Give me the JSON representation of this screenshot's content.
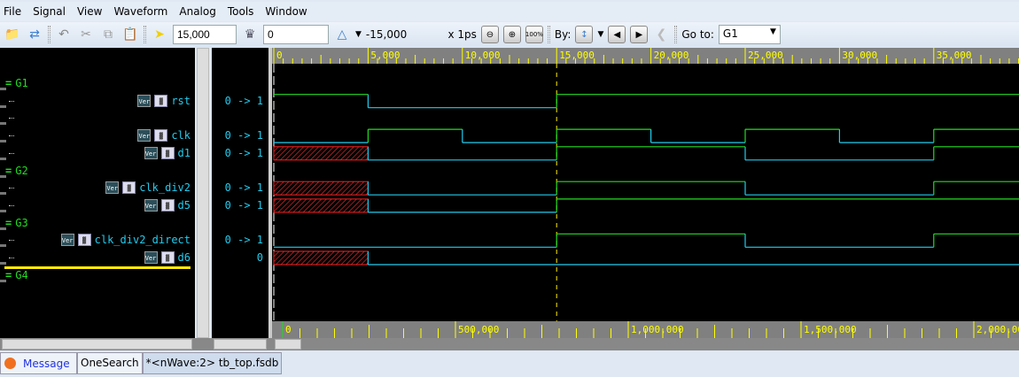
{
  "menu": [
    "File",
    "Signal",
    "View",
    "Waveform",
    "Analog",
    "Tools",
    "Window"
  ],
  "toolbar": {
    "cursor_time": "15,000",
    "marker_time": "0",
    "delta": "-15,000",
    "unit": "x 1ps",
    "by_label": "By:",
    "goto_label": "Go to:",
    "goto_value": "G1",
    "zoom_100": "100%"
  },
  "rows": [
    {
      "type": "group",
      "name": "G1"
    },
    {
      "type": "signal",
      "name": "rst",
      "value": "0 -> 1",
      "wave": [
        [
          0,
          1
        ],
        [
          5000,
          0
        ],
        [
          15000,
          1
        ]
      ]
    },
    {
      "type": "blank"
    },
    {
      "type": "signal",
      "name": "clk",
      "value": "0 -> 1",
      "wave": [
        [
          0,
          0
        ],
        [
          5000,
          1
        ],
        [
          10000,
          0
        ],
        [
          15000,
          1
        ],
        [
          20000,
          0
        ],
        [
          25000,
          1
        ],
        [
          30000,
          0
        ],
        [
          35000,
          1
        ]
      ]
    },
    {
      "type": "signal",
      "name": "d1",
      "value": "0 -> 1",
      "wave": [
        [
          0,
          "x"
        ],
        [
          5000,
          0
        ],
        [
          15000,
          1
        ],
        [
          25000,
          0
        ],
        [
          35000,
          1
        ]
      ]
    },
    {
      "type": "group",
      "name": "G2"
    },
    {
      "type": "signal",
      "name": "clk_div2",
      "value": "0 -> 1",
      "wave": [
        [
          0,
          "x"
        ],
        [
          5000,
          0
        ],
        [
          15000,
          1
        ],
        [
          25000,
          0
        ],
        [
          35000,
          1
        ]
      ]
    },
    {
      "type": "signal",
      "name": "d5",
      "value": "0 -> 1",
      "wave": [
        [
          0,
          "x"
        ],
        [
          5000,
          0
        ],
        [
          15000,
          1
        ]
      ]
    },
    {
      "type": "group",
      "name": "G3"
    },
    {
      "type": "signal",
      "name": "clk_div2_direct",
      "value": "0 -> 1",
      "wave": [
        [
          0,
          0
        ],
        [
          15000,
          1
        ],
        [
          25000,
          0
        ],
        [
          35000,
          1
        ]
      ]
    },
    {
      "type": "signal",
      "name": "d6",
      "value": "0",
      "wave": [
        [
          0,
          "x"
        ],
        [
          5000,
          0
        ]
      ]
    },
    {
      "type": "group",
      "name": "G4"
    }
  ],
  "ruler_top": {
    "labels": [
      "0",
      "5,000",
      "10,000",
      "15,000",
      "20,000",
      "25,000",
      "30,000",
      "35,000"
    ],
    "step": 5000
  },
  "ruler_bottom": {
    "labels": [
      "0",
      "500,000",
      "1,000,000",
      "1,500,000",
      "2,000,000"
    ]
  },
  "cursor_time": 15000,
  "badges": {
    "ver": "Ver"
  },
  "tabs": [
    "Message",
    "OneSearch",
    "*<nWave:2> tb_top.fsdb"
  ],
  "colors": {
    "high": "#22dd22",
    "low": "#22ccee",
    "x": "#ff2020",
    "cursor": "#ffee00",
    "ruler": "#808080",
    "ruler_text": "#ffff00"
  }
}
